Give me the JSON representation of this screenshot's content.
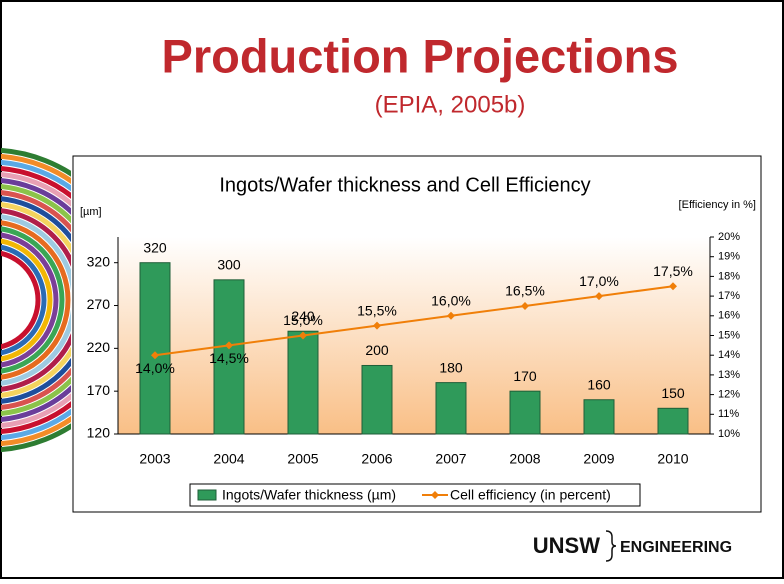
{
  "slide": {
    "title": "Production Projections",
    "subtitle": "(EPIA, 2005b)",
    "logo": "UNSW",
    "logo_unit": "ENGINEERING"
  },
  "chart_data": {
    "type": "combo",
    "title": "Ingots/Wafer thickness and Cell Efficiency",
    "y_label": "[µm]",
    "y2_label": "[Efficiency in %]",
    "categories": [
      "2003",
      "2004",
      "2005",
      "2006",
      "2007",
      "2008",
      "2009",
      "2010"
    ],
    "series": [
      {
        "name": "Ingots/Wafer thickness (µm)",
        "type": "bar",
        "color": "#2f9a5a",
        "values": [
          320,
          300,
          240,
          200,
          180,
          170,
          160,
          150
        ]
      },
      {
        "name": "Cell efficiency (in percent)",
        "type": "line",
        "axis": "y2",
        "color": "#f07f09",
        "values": [
          14.0,
          14.5,
          15.0,
          15.5,
          16.0,
          16.5,
          17.0,
          17.5
        ],
        "value_labels": [
          "14,0%",
          "14,5%",
          "15,0%",
          "15,5%",
          "16,0%",
          "16,5%",
          "17,0%",
          "17,5%"
        ]
      }
    ],
    "ylim": [
      120,
      350
    ],
    "yticks": [
      120,
      170,
      220,
      270,
      320
    ],
    "y2lim": [
      10,
      20
    ],
    "y2ticks": [
      {
        "value": 10,
        "label": "10%"
      },
      {
        "value": 11,
        "label": "11%"
      },
      {
        "value": 12,
        "label": "12%"
      },
      {
        "value": 13,
        "label": "13%"
      },
      {
        "value": 14,
        "label": "14%"
      },
      {
        "value": 15,
        "label": "15%"
      },
      {
        "value": 16,
        "label": "16%"
      },
      {
        "value": 17,
        "label": "17%"
      },
      {
        "value": 18,
        "label": "18%"
      },
      {
        "value": 19,
        "label": "19%"
      },
      {
        "value": 20,
        "label": "20%"
      }
    ],
    "legend": "bottom"
  }
}
